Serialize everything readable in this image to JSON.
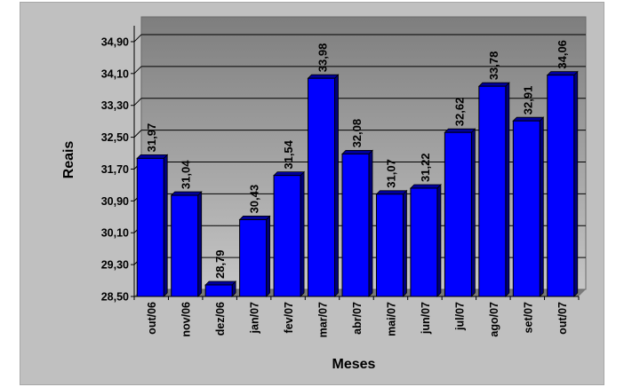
{
  "chart_data": {
    "type": "bar",
    "xlabel": "Meses",
    "ylabel": "Reais",
    "ylim": [
      28.5,
      35.3
    ],
    "yticks": [
      "28,50",
      "29,30",
      "30,10",
      "30,90",
      "31,70",
      "32,50",
      "33,30",
      "34,10",
      "34,90"
    ],
    "categories": [
      "out/06",
      "nov/06",
      "dez/06",
      "jan/07",
      "fev/07",
      "mar/07",
      "abr/07",
      "mai/07",
      "jun/07",
      "jul/07",
      "ago/07",
      "set/07",
      "out/07"
    ],
    "values": [
      31.97,
      31.04,
      28.79,
      30.43,
      31.54,
      33.98,
      32.08,
      31.07,
      31.22,
      32.62,
      33.78,
      32.91,
      34.06
    ],
    "value_labels": [
      "31,97",
      "31,04",
      "28,79",
      "30,43",
      "31,54",
      "33,98",
      "32,08",
      "31,07",
      "31,22",
      "32,62",
      "33,78",
      "32,91",
      "34,06"
    ],
    "grid": true,
    "colors": {
      "bar": "#0000ff",
      "plot_bg": "#999999",
      "chart_bg": "#c0c0c0"
    }
  }
}
